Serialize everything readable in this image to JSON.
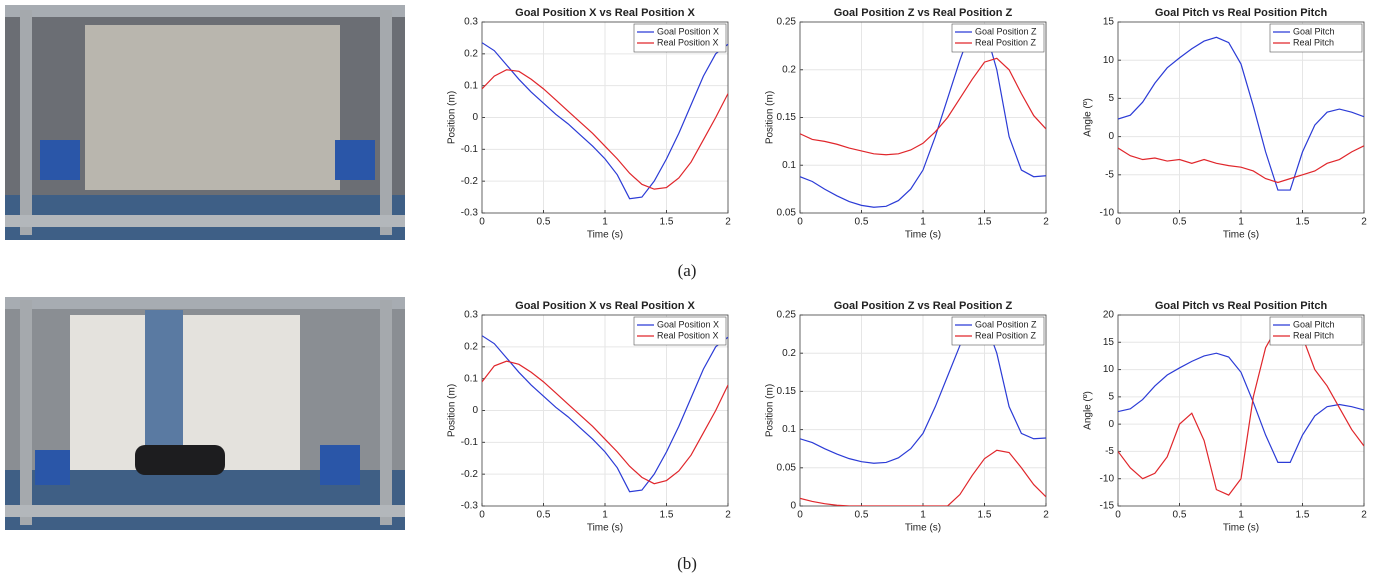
{
  "captions": [
    "(a)",
    "(b)"
  ],
  "chart_data": [
    {
      "type": "line",
      "title": "Goal Position X vs Real Position X",
      "xlabel": "Time (s)",
      "ylabel": "Position (m)",
      "x": [
        0,
        0.1,
        0.2,
        0.3,
        0.4,
        0.5,
        0.6,
        0.7,
        0.8,
        0.9,
        1,
        1.1,
        1.2,
        1.3,
        1.4,
        1.5,
        1.6,
        1.7,
        1.8,
        1.9,
        2
      ],
      "series": [
        {
          "name": "Goal Position X",
          "color": "#2b3bd6",
          "values": [
            0.235,
            0.21,
            0.165,
            0.12,
            0.08,
            0.045,
            0.01,
            -0.02,
            -0.055,
            -0.09,
            -0.13,
            -0.18,
            -0.255,
            -0.25,
            -0.2,
            -0.13,
            -0.05,
            0.04,
            0.13,
            0.2,
            0.23
          ]
        },
        {
          "name": "Real Position X",
          "color": "#e0262b",
          "values": [
            0.09,
            0.13,
            0.15,
            0.145,
            0.12,
            0.09,
            0.055,
            0.02,
            -0.015,
            -0.05,
            -0.09,
            -0.13,
            -0.175,
            -0.21,
            -0.225,
            -0.22,
            -0.19,
            -0.14,
            -0.07,
            0.0,
            0.075
          ]
        }
      ],
      "xlim": [
        0,
        2
      ],
      "ylim": [
        -0.3,
        0.3
      ],
      "xticks": [
        0,
        0.5,
        1,
        1.5,
        2
      ],
      "yticks": [
        -0.3,
        -0.2,
        -0.1,
        0,
        0.1,
        0.2,
        0.3
      ],
      "grid": true,
      "legend": "upper-right"
    },
    {
      "type": "line",
      "title": "Goal Position Z vs Real Position Z",
      "xlabel": "Time (s)",
      "ylabel": "Position (m)",
      "x": [
        0,
        0.1,
        0.2,
        0.3,
        0.4,
        0.5,
        0.6,
        0.7,
        0.8,
        0.9,
        1,
        1.1,
        1.2,
        1.3,
        1.4,
        1.5,
        1.6,
        1.7,
        1.8,
        1.9,
        2
      ],
      "series": [
        {
          "name": "Goal Position Z",
          "color": "#2b3bd6",
          "values": [
            0.088,
            0.083,
            0.075,
            0.068,
            0.062,
            0.058,
            0.056,
            0.057,
            0.063,
            0.075,
            0.095,
            0.13,
            0.17,
            0.21,
            0.245,
            0.245,
            0.2,
            0.13,
            0.095,
            0.088,
            0.089
          ]
        },
        {
          "name": "Real Position Z",
          "color": "#e0262b",
          "values": [
            0.133,
            0.127,
            0.125,
            0.122,
            0.118,
            0.115,
            0.112,
            0.111,
            0.112,
            0.116,
            0.123,
            0.135,
            0.15,
            0.17,
            0.19,
            0.208,
            0.212,
            0.2,
            0.175,
            0.152,
            0.138
          ]
        }
      ],
      "xlim": [
        0,
        2
      ],
      "ylim": [
        0.05,
        0.25
      ],
      "xticks": [
        0,
        0.5,
        1,
        1.5,
        2
      ],
      "yticks": [
        0.05,
        0.1,
        0.15,
        0.2,
        0.25
      ],
      "grid": true,
      "legend": "upper-right"
    },
    {
      "type": "line",
      "title": "Goal Pitch vs Real Position Pitch",
      "xlabel": "Time (s)",
      "ylabel": "Angle (º)",
      "x": [
        0,
        0.1,
        0.2,
        0.3,
        0.4,
        0.5,
        0.6,
        0.7,
        0.8,
        0.9,
        1,
        1.1,
        1.2,
        1.3,
        1.4,
        1.5,
        1.6,
        1.7,
        1.8,
        1.9,
        2
      ],
      "series": [
        {
          "name": "Goal Pitch",
          "color": "#2b3bd6",
          "values": [
            2.3,
            2.8,
            4.5,
            7,
            9,
            10.3,
            11.5,
            12.5,
            13,
            12.3,
            9.5,
            4,
            -2,
            -7,
            -7,
            -2,
            1.5,
            3.2,
            3.6,
            3.2,
            2.6
          ]
        },
        {
          "name": "Real Pitch",
          "color": "#e0262b",
          "values": [
            -1.5,
            -2.5,
            -3,
            -2.8,
            -3.2,
            -3,
            -3.5,
            -3,
            -3.5,
            -3.8,
            -4,
            -4.5,
            -5.5,
            -6,
            -5.5,
            -5,
            -4.5,
            -3.5,
            -3,
            -2,
            -1.2
          ]
        }
      ],
      "xlim": [
        0,
        2
      ],
      "ylim": [
        -10,
        15
      ],
      "xticks": [
        0,
        0.5,
        1,
        1.5,
        2
      ],
      "yticks": [
        -10,
        -5,
        0,
        5,
        10,
        15
      ],
      "grid": true,
      "legend": "upper-right"
    },
    {
      "type": "line",
      "title": "Goal Position X vs Real Position X",
      "xlabel": "Time (s)",
      "ylabel": "Position (m)",
      "x": [
        0,
        0.1,
        0.2,
        0.3,
        0.4,
        0.5,
        0.6,
        0.7,
        0.8,
        0.9,
        1,
        1.1,
        1.2,
        1.3,
        1.4,
        1.5,
        1.6,
        1.7,
        1.8,
        1.9,
        2
      ],
      "series": [
        {
          "name": "Goal Position X",
          "color": "#2b3bd6",
          "values": [
            0.235,
            0.21,
            0.165,
            0.12,
            0.08,
            0.045,
            0.01,
            -0.02,
            -0.055,
            -0.09,
            -0.13,
            -0.18,
            -0.255,
            -0.25,
            -0.2,
            -0.13,
            -0.05,
            0.04,
            0.13,
            0.2,
            0.23
          ]
        },
        {
          "name": "Real Position X",
          "color": "#e0262b",
          "values": [
            0.09,
            0.14,
            0.155,
            0.145,
            0.12,
            0.09,
            0.055,
            0.02,
            -0.015,
            -0.05,
            -0.09,
            -0.13,
            -0.175,
            -0.21,
            -0.23,
            -0.22,
            -0.19,
            -0.14,
            -0.07,
            0.0,
            0.08
          ]
        }
      ],
      "xlim": [
        0,
        2
      ],
      "ylim": [
        -0.3,
        0.3
      ],
      "xticks": [
        0,
        0.5,
        1,
        1.5,
        2
      ],
      "yticks": [
        -0.3,
        -0.2,
        -0.1,
        0,
        0.1,
        0.2,
        0.3
      ],
      "grid": true,
      "legend": "upper-right"
    },
    {
      "type": "line",
      "title": "Goal Position Z vs Real Position Z",
      "xlabel": "Time (s)",
      "ylabel": "Position (m)",
      "x": [
        0,
        0.1,
        0.2,
        0.3,
        0.4,
        0.5,
        0.6,
        0.7,
        0.8,
        0.9,
        1,
        1.1,
        1.2,
        1.3,
        1.4,
        1.5,
        1.6,
        1.7,
        1.8,
        1.9,
        2
      ],
      "series": [
        {
          "name": "Goal Position Z",
          "color": "#2b3bd6",
          "values": [
            0.088,
            0.083,
            0.075,
            0.068,
            0.062,
            0.058,
            0.056,
            0.057,
            0.063,
            0.075,
            0.095,
            0.13,
            0.17,
            0.21,
            0.245,
            0.245,
            0.2,
            0.13,
            0.095,
            0.088,
            0.089
          ]
        },
        {
          "name": "Real Position Z",
          "color": "#e0262b",
          "values": [
            0.01,
            0.006,
            0.003,
            0.001,
            0,
            0,
            0,
            0,
            0,
            0,
            0,
            0,
            0,
            0.015,
            0.04,
            0.062,
            0.073,
            0.07,
            0.05,
            0.028,
            0.012
          ]
        }
      ],
      "xlim": [
        0,
        2
      ],
      "ylim": [
        0,
        0.25
      ],
      "xticks": [
        0,
        0.5,
        1,
        1.5,
        2
      ],
      "yticks": [
        0,
        0.05,
        0.1,
        0.15,
        0.2,
        0.25
      ],
      "grid": true,
      "legend": "upper-right"
    },
    {
      "type": "line",
      "title": "Goal Pitch vs Real Position Pitch",
      "xlabel": "Time (s)",
      "ylabel": "Angle (º)",
      "x": [
        0,
        0.1,
        0.2,
        0.3,
        0.4,
        0.5,
        0.6,
        0.7,
        0.8,
        0.9,
        1,
        1.1,
        1.2,
        1.3,
        1.4,
        1.5,
        1.6,
        1.7,
        1.8,
        1.9,
        2
      ],
      "series": [
        {
          "name": "Goal Pitch",
          "color": "#2b3bd6",
          "values": [
            2.3,
            2.8,
            4.5,
            7,
            9,
            10.3,
            11.5,
            12.5,
            13,
            12.3,
            9.5,
            4,
            -2,
            -7,
            -7,
            -2,
            1.5,
            3.2,
            3.6,
            3.2,
            2.6
          ]
        },
        {
          "name": "Real Pitch",
          "color": "#e0262b",
          "values": [
            -5,
            -8,
            -10,
            -9,
            -6,
            0,
            2,
            -3,
            -12,
            -13,
            -10,
            5,
            14,
            18,
            19,
            16,
            10,
            7,
            3,
            -1,
            -4
          ]
        }
      ],
      "xlim": [
        0,
        2
      ],
      "ylim": [
        -15,
        20
      ],
      "xticks": [
        0,
        0.5,
        1,
        1.5,
        2
      ],
      "yticks": [
        -15,
        -10,
        -5,
        0,
        5,
        10,
        15,
        20
      ],
      "grid": true,
      "legend": "upper-right"
    }
  ]
}
